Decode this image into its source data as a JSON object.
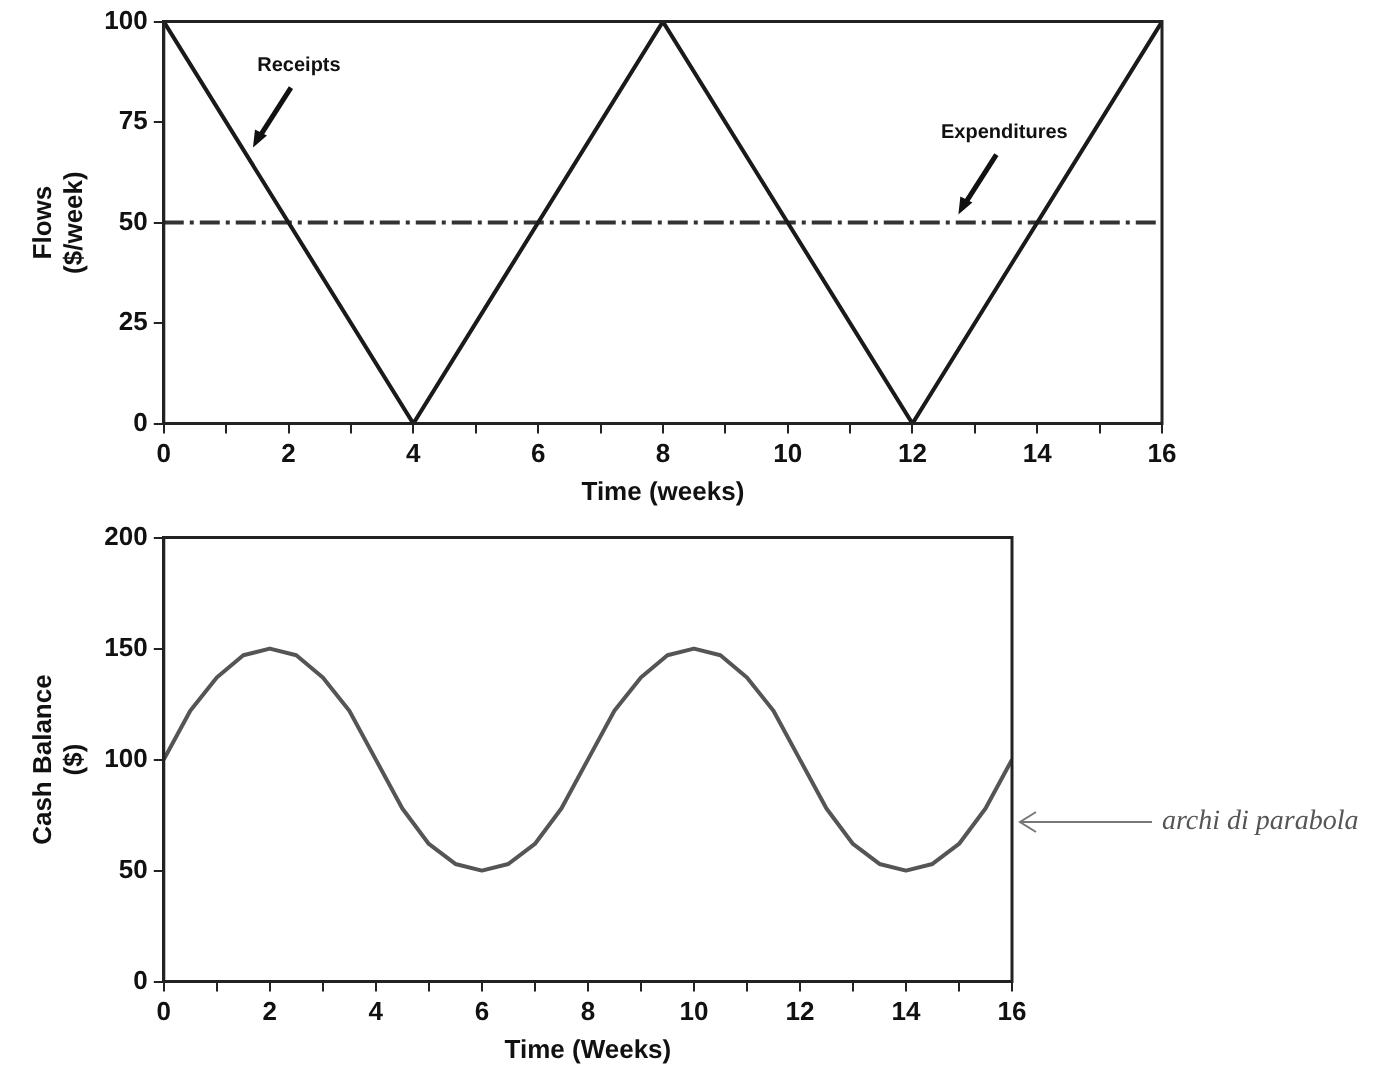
{
  "chart_data": [
    {
      "type": "line",
      "xlabel": "Time (weeks)",
      "ylabel": "Flows\n($/week)",
      "xlim": [
        0,
        16
      ],
      "ylim": [
        0,
        100
      ],
      "xticks": [
        0,
        {
          "value": 1,
          "label": null
        },
        2,
        {
          "value": 3,
          "label": null
        },
        4,
        {
          "value": 5,
          "label": null
        },
        6,
        {
          "value": 7,
          "label": null
        },
        8,
        {
          "value": 9,
          "label": null
        },
        10,
        {
          "value": 11,
          "label": null
        },
        12,
        {
          "value": 13,
          "label": null
        },
        14,
        {
          "value": 15,
          "label": null
        },
        16
      ],
      "yticks": [
        0,
        25,
        50,
        75,
        100
      ],
      "grid": false,
      "legend": false,
      "marker": "none",
      "series": [
        {
          "name": "Receipts",
          "color": "#1a1a1a",
          "x": [
            0,
            4,
            8,
            12,
            16
          ],
          "values": [
            100,
            0,
            100,
            0,
            100
          ],
          "line_style": "solid"
        },
        {
          "name": "Expenditures",
          "color": "#333333",
          "x": [
            0,
            16
          ],
          "values": [
            50,
            50
          ],
          "line_style": "dashed"
        }
      ]
    },
    {
      "type": "line",
      "xlabel": "Time (Weeks)",
      "ylabel": "Cash Balance\n($)",
      "xlim": [
        0,
        16
      ],
      "ylim": [
        0,
        200
      ],
      "xticks": [
        0,
        {
          "value": 1,
          "label": null
        },
        2,
        {
          "value": 3,
          "label": null
        },
        4,
        {
          "value": 5,
          "label": null
        },
        6,
        {
          "value": 7,
          "label": null
        },
        8,
        {
          "value": 9,
          "label": null
        },
        10,
        {
          "value": 11,
          "label": null
        },
        12,
        {
          "value": 13,
          "label": null
        },
        14,
        {
          "value": 15,
          "label": null
        },
        16
      ],
      "yticks": [
        0,
        50,
        100,
        150,
        200
      ],
      "grid": false,
      "legend": false,
      "marker": "none",
      "series": [
        {
          "color": "#555555",
          "x": [
            0,
            0.5,
            1,
            1.5,
            2,
            2.5,
            3,
            3.5,
            4,
            4.5,
            5,
            5.5,
            6,
            6.5,
            7,
            7.5,
            8,
            8.5,
            9,
            9.5,
            10,
            10.5,
            11,
            11.5,
            12,
            12.5,
            13,
            13.5,
            14,
            14.5,
            15,
            15.5,
            16
          ],
          "values": [
            100,
            122,
            137,
            147,
            150,
            147,
            137,
            122,
            100,
            78,
            62,
            53,
            50,
            53,
            62,
            78,
            100,
            122,
            137,
            147,
            150,
            147,
            137,
            122,
            100,
            78,
            62,
            53,
            50,
            53,
            62,
            78,
            100
          ],
          "line_style": "solid"
        }
      ],
      "annotations": [
        "archi di parabola"
      ]
    }
  ]
}
